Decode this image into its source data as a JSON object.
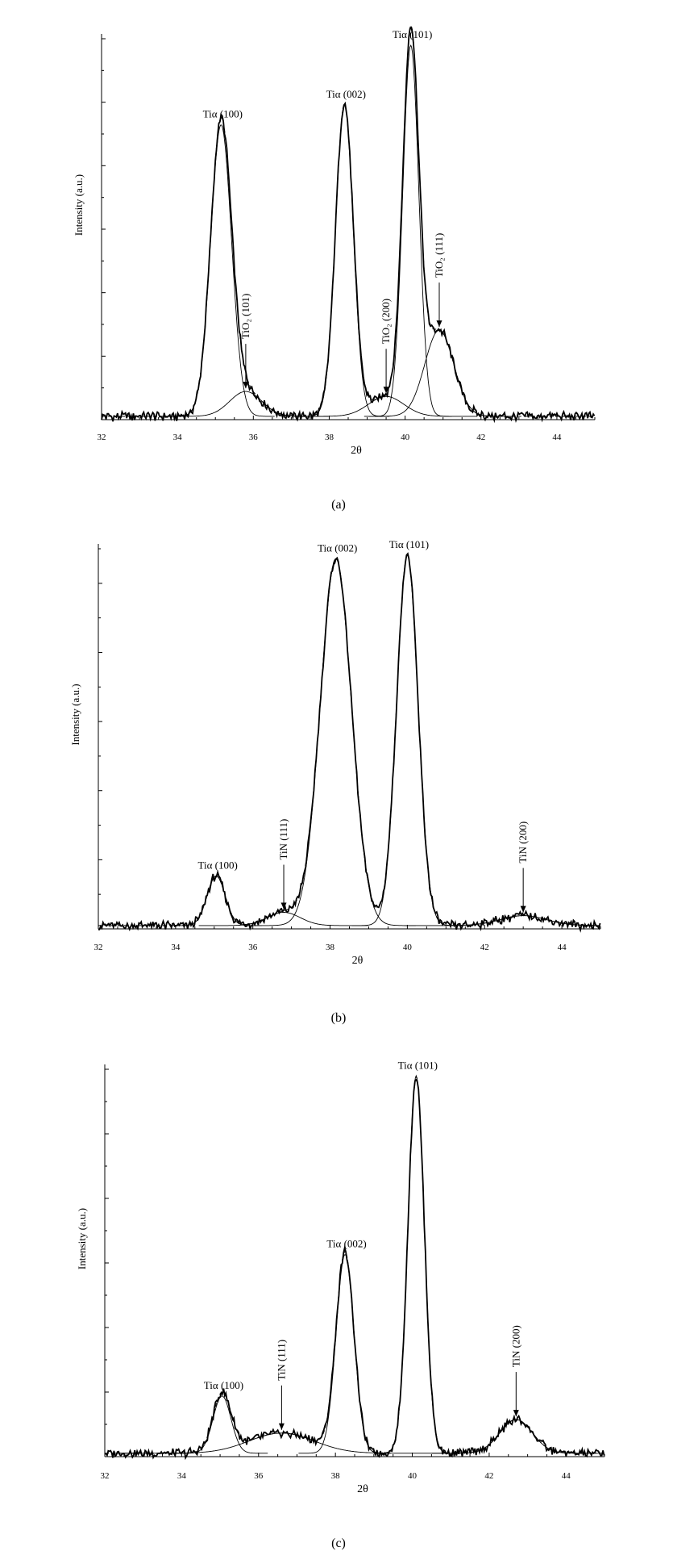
{
  "figure": {
    "panel_labels": [
      "(a)",
      "(b)",
      "(c)"
    ]
  },
  "chart_data": [
    {
      "type": "line",
      "panel": "(a)",
      "xlabel": "2θ",
      "ylabel": "Intensity (a.u.)",
      "xlim": [
        32,
        45
      ],
      "ylim": [
        0,
        1.15
      ],
      "x_ticks": [
        "32",
        "34",
        "36",
        "38",
        "40",
        "42",
        "44"
      ],
      "baseline": 0.01,
      "peaks": [
        {
          "label": "Tiα (100)",
          "center": 35.15,
          "height": 0.88,
          "fwhm": 0.65
        },
        {
          "label": "TiO2 (101)",
          "center": 35.8,
          "height": 0.075,
          "fwhm": 1.0,
          "arrow": true
        },
        {
          "label": "Tiα (002)",
          "center": 38.4,
          "height": 0.94,
          "fwhm": 0.55
        },
        {
          "label": "TiO2 (200)",
          "center": 39.5,
          "height": 0.06,
          "fwhm": 1.1,
          "arrow": true
        },
        {
          "label": "Tiα (101)",
          "center": 40.15,
          "height": 1.12,
          "fwhm": 0.5
        },
        {
          "label": "TiO2 (111)",
          "center": 40.9,
          "height": 0.26,
          "fwhm": 0.9,
          "arrow": true
        }
      ]
    },
    {
      "type": "line",
      "panel": "(b)",
      "xlabel": "2θ",
      "ylabel": "Intensity (a.u.)",
      "xlim": [
        32,
        45
      ],
      "ylim": [
        0,
        1.15
      ],
      "x_ticks": [
        "32",
        "34",
        "36",
        "38",
        "40",
        "42",
        "44"
      ],
      "baseline": 0.01,
      "peaks": [
        {
          "label": "Tiα (100)",
          "center": 35.05,
          "height": 0.15,
          "fwhm": 0.55
        },
        {
          "label": "TiN (111)",
          "center": 36.8,
          "height": 0.04,
          "fwhm": 1.0,
          "arrow": true
        },
        {
          "label": "Tiα (002)",
          "center": 38.15,
          "height": 1.11,
          "fwhm": 0.95
        },
        {
          "label": "Tiα (101)",
          "center": 40.0,
          "height": 1.12,
          "fwhm": 0.65
        },
        {
          "label": "TiN (200)",
          "center": 43.0,
          "height": 0.03,
          "fwhm": 1.4,
          "arrow": true
        }
      ]
    },
    {
      "type": "line",
      "panel": "(c)",
      "xlabel": "2θ",
      "ylabel": "Intensity (a.u.)",
      "xlim": [
        32,
        45
      ],
      "ylim": [
        0,
        1.15
      ],
      "x_ticks": [
        "32",
        "34",
        "36",
        "38",
        "40",
        "42",
        "44"
      ],
      "baseline": 0.01,
      "peaks": [
        {
          "label": "Tiα (100)",
          "center": 35.05,
          "height": 0.17,
          "fwhm": 0.55
        },
        {
          "label": "TiN (111)",
          "center": 36.6,
          "height": 0.06,
          "fwhm": 2.0,
          "arrow": true
        },
        {
          "label": "Tiα (002)",
          "center": 38.25,
          "height": 0.59,
          "fwhm": 0.55
        },
        {
          "label": "Tiα (101)",
          "center": 40.1,
          "height": 1.12,
          "fwhm": 0.5
        },
        {
          "label": "TiN (200)",
          "center": 42.7,
          "height": 0.1,
          "fwhm": 1.0,
          "arrow": true
        }
      ]
    }
  ]
}
